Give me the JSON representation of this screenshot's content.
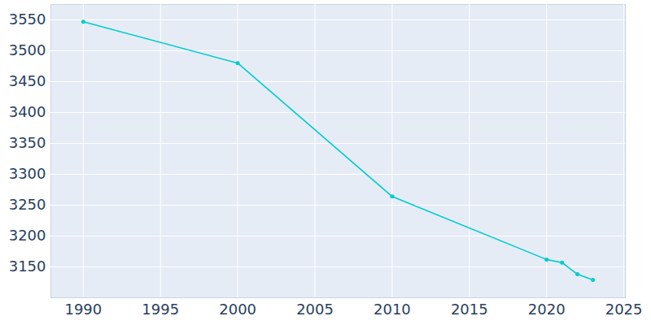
{
  "chart_data": {
    "type": "line",
    "x": [
      1990,
      2000,
      2010,
      2020,
      2021,
      2022,
      2023
    ],
    "values": [
      3547,
      3480,
      3264,
      3162,
      3157,
      3138,
      3129
    ],
    "color": "#00cccc",
    "marker": "circle",
    "xlim": [
      1987.9,
      2025.1
    ],
    "xticks": [
      1990,
      1995,
      2000,
      2005,
      2010,
      2015,
      2020,
      2025
    ],
    "ylim": [
      3100,
      3575
    ],
    "yticks": [
      3150,
      3200,
      3250,
      3300,
      3350,
      3400,
      3450,
      3500,
      3550
    ],
    "grid": true
  }
}
